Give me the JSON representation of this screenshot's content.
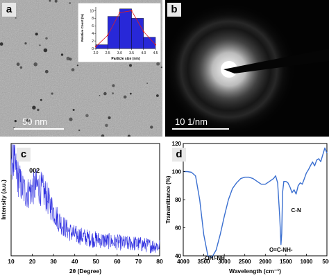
{
  "panels": {
    "a": {
      "letter": "a",
      "scale_label": "50 nm"
    },
    "b": {
      "letter": "b",
      "scale_label": "10 1/nm"
    },
    "c": {
      "letter": "c"
    },
    "d": {
      "letter": "d"
    }
  },
  "chart_data": [
    {
      "type": "bar",
      "panel": "a-inset",
      "xlabel": "Particle size (nm)",
      "ylabel": "Relative Count (%)",
      "categories": [
        "2.25",
        "2.75",
        "3.25",
        "3.75",
        "4.25"
      ],
      "values": [
        1,
        8.5,
        10.5,
        8,
        3
      ],
      "fit_curve": {
        "x": [
          2.0,
          2.5,
          3.0,
          3.5,
          4.0,
          4.5
        ],
        "y": [
          0.5,
          3.5,
          9.5,
          10,
          4.5,
          1
        ]
      },
      "xticks": [
        "2.0",
        "2.5",
        "3.0",
        "3.5",
        "4.0",
        "4.5"
      ],
      "yticks": [
        "0",
        "2",
        "4",
        "6",
        "8",
        "10"
      ],
      "xlim": [
        2.0,
        4.5
      ],
      "ylim": [
        0,
        11
      ],
      "bar_color": "#2828d8",
      "curve_color": "#e02020"
    },
    {
      "type": "line",
      "panel": "c",
      "xlabel": "2θ (Degree)",
      "ylabel": "Intensity (a.u.)",
      "annotations": [
        {
          "text": "002",
          "x": 21,
          "y": 0.74
        }
      ],
      "xticks": [
        "10",
        "20",
        "30",
        "40",
        "50",
        "60",
        "70",
        "80"
      ],
      "xlim": [
        10,
        80
      ],
      "ylim": [
        0,
        1
      ],
      "envelope_x": [
        10,
        12,
        14,
        16,
        18,
        20,
        22,
        24,
        26,
        28,
        30,
        32,
        34,
        36,
        38,
        40,
        44,
        48,
        52,
        56,
        60,
        64,
        68,
        72,
        76,
        80
      ],
      "envelope_y": [
        0.92,
        0.78,
        0.66,
        0.58,
        0.56,
        0.6,
        0.62,
        0.6,
        0.55,
        0.47,
        0.4,
        0.33,
        0.28,
        0.24,
        0.21,
        0.19,
        0.17,
        0.15,
        0.14,
        0.13,
        0.12,
        0.11,
        0.11,
        0.1,
        0.09,
        0.09
      ],
      "line_color": "#2e2ee0"
    },
    {
      "type": "line",
      "panel": "d",
      "xlabel": "Wavelength (cm⁻¹)",
      "ylabel": "Transmittance (%)",
      "x_reversed": true,
      "xlim": [
        4000,
        500
      ],
      "ylim": [
        40,
        120
      ],
      "xticks": [
        "4000",
        "3500",
        "3000",
        "2500",
        "2000",
        "1500",
        "1000",
        "500"
      ],
      "yticks": [
        "40",
        "60",
        "80",
        "100",
        "120"
      ],
      "x": [
        4000,
        3900,
        3800,
        3700,
        3600,
        3500,
        3400,
        3300,
        3200,
        3100,
        3000,
        2900,
        2800,
        2700,
        2600,
        2500,
        2400,
        2300,
        2200,
        2100,
        2000,
        1900,
        1800,
        1750,
        1700,
        1650,
        1620,
        1600,
        1580,
        1550,
        1500,
        1450,
        1400,
        1350,
        1300,
        1250,
        1200,
        1150,
        1100,
        1050,
        1000,
        950,
        900,
        850,
        800,
        750,
        700,
        650,
        600,
        550,
        500
      ],
      "y": [
        100,
        100,
        99.5,
        97,
        80,
        55,
        40,
        39,
        44,
        55,
        68,
        80,
        88,
        92,
        95,
        96,
        96,
        95,
        93,
        91,
        91,
        93,
        95,
        97,
        92,
        68,
        48,
        56,
        85,
        93,
        93,
        92,
        89,
        85,
        87,
        84,
        90,
        92,
        91,
        95,
        99,
        102,
        104,
        106,
        104,
        108,
        110,
        107,
        113,
        116,
        114
      ],
      "annotations": [
        {
          "text": "-OH/-NH",
          "x": 3250,
          "y": 37
        },
        {
          "text": "O=C-NH-",
          "x": 1620,
          "y": 43
        },
        {
          "text": "C-N",
          "x": 1250,
          "y": 71
        }
      ],
      "line_color": "#3a6fd0"
    }
  ]
}
